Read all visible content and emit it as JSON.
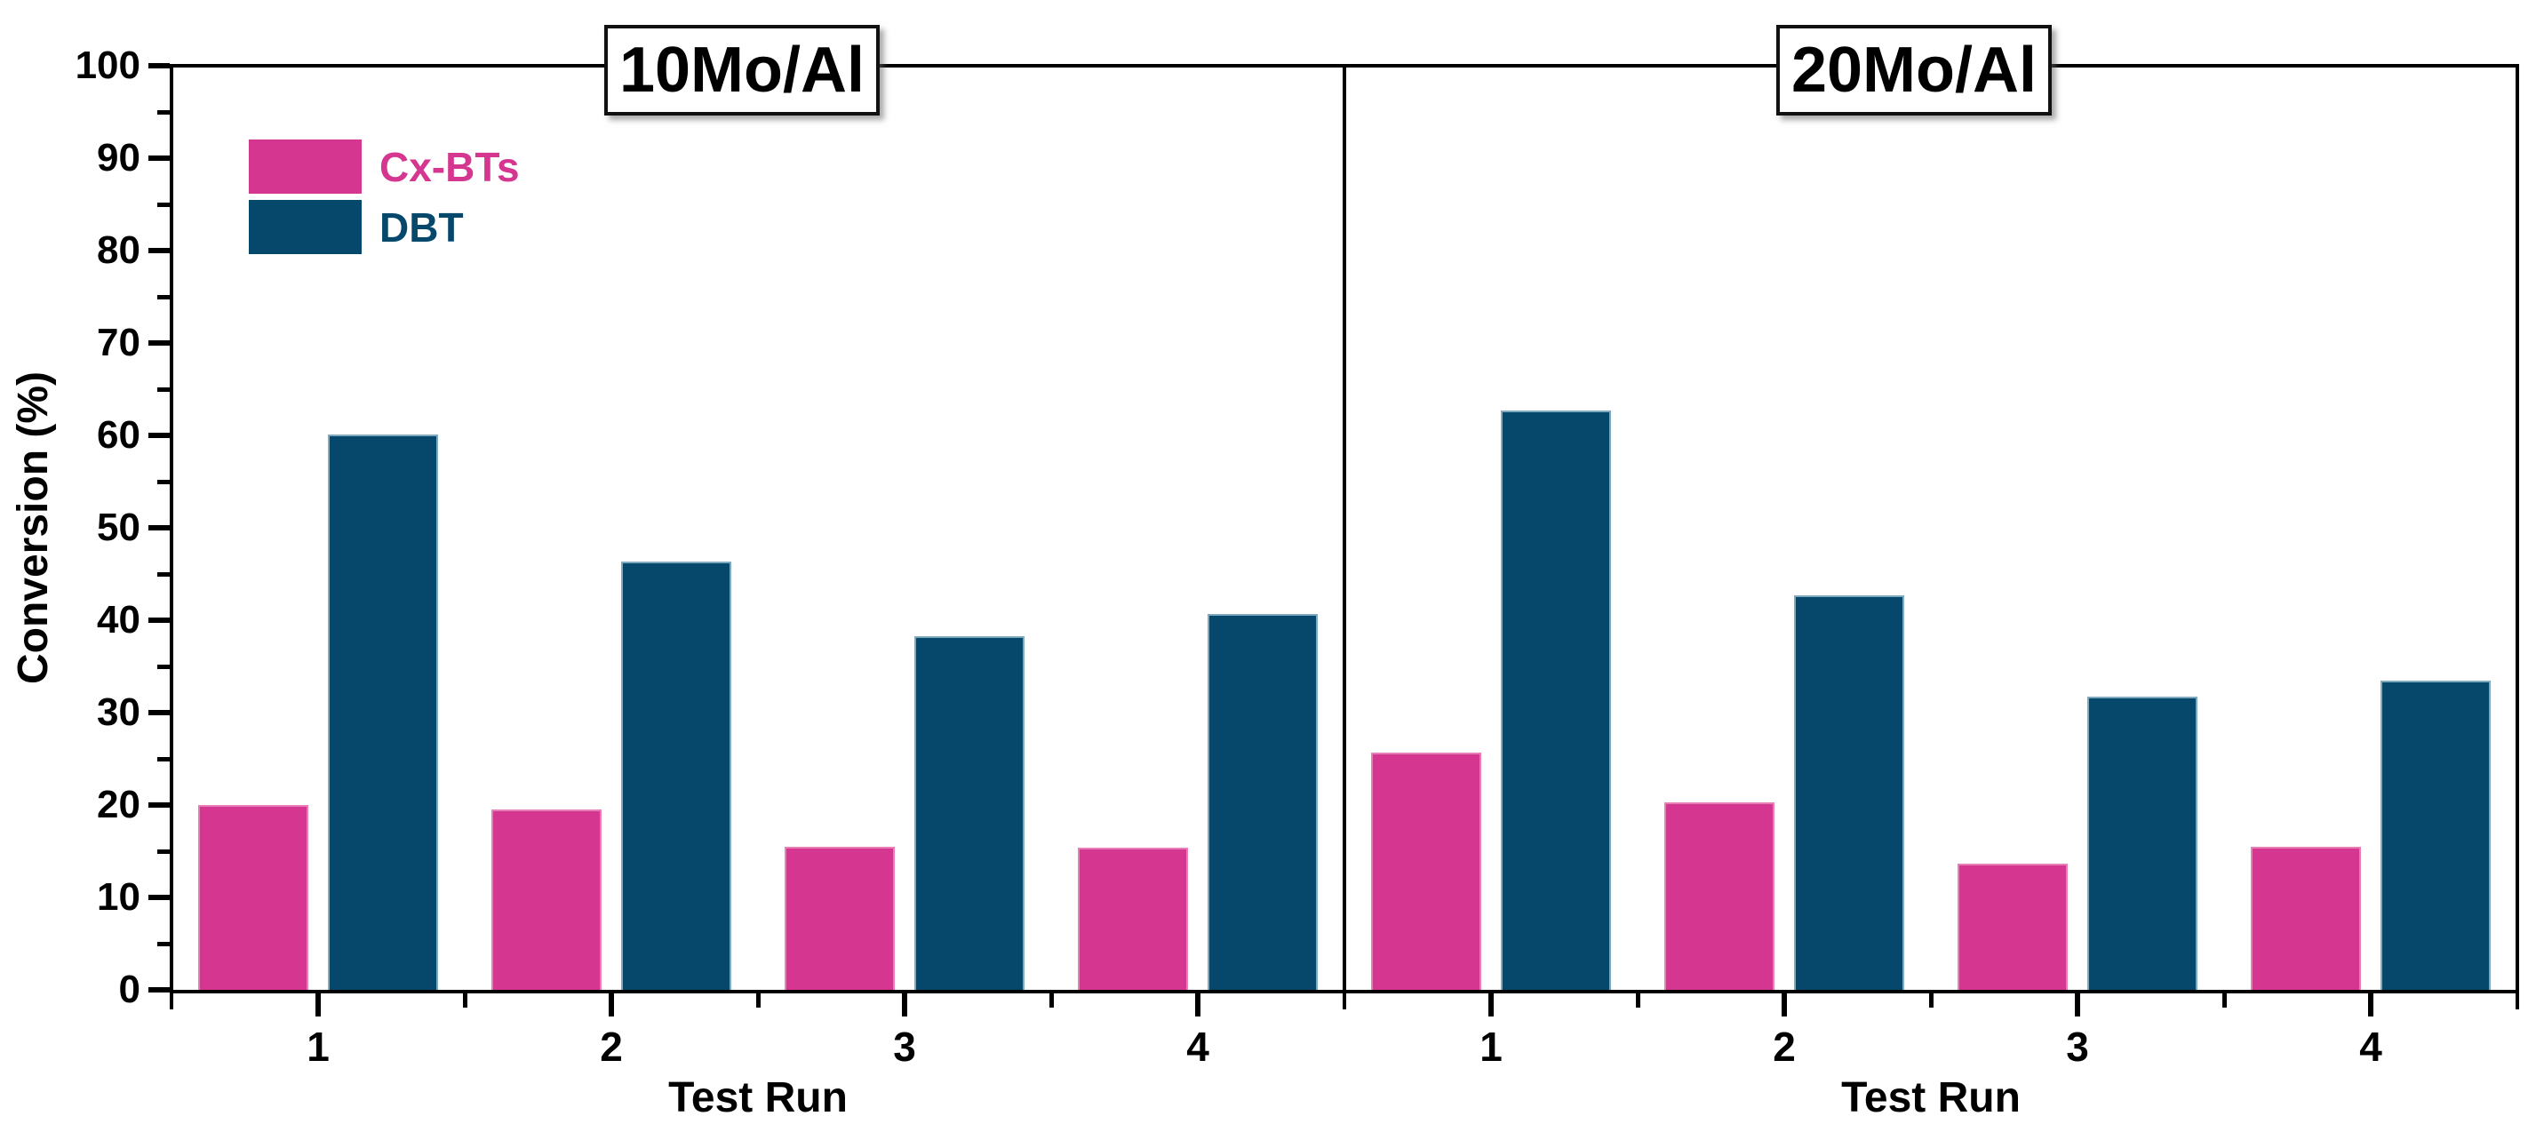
{
  "chart_data": {
    "type": "bar",
    "ylabel": "Conversion (%)",
    "ylim": [
      0,
      100
    ],
    "ytick_step": 10,
    "ytick_minor_step": 5,
    "grid": false,
    "legend_position": "top-left-first-panel",
    "legend": [
      {
        "label": "Cx-BTs",
        "color": "#d43690"
      },
      {
        "label": "DBT",
        "color": "#05486b"
      }
    ],
    "panels": [
      {
        "title": "10Mo/Al",
        "xlabel": "Test Run",
        "categories": [
          "1",
          "2",
          "3",
          "4"
        ],
        "series": [
          {
            "name": "Cx-BTs",
            "color": "#d43690",
            "values": [
              20.0,
              19.5,
              15.5,
              15.4
            ]
          },
          {
            "name": "DBT",
            "color": "#05486b",
            "values": [
              60.1,
              46.3,
              38.3,
              40.7
            ]
          }
        ]
      },
      {
        "title": "20Mo/Al",
        "xlabel": "Test Run",
        "categories": [
          "1",
          "2",
          "3",
          "4"
        ],
        "series": [
          {
            "name": "Cx-BTs",
            "color": "#d43690",
            "values": [
              25.7,
              20.3,
              13.7,
              15.5
            ]
          },
          {
            "name": "DBT",
            "color": "#05486b",
            "values": [
              62.7,
              42.7,
              31.7,
              33.5
            ]
          }
        ]
      }
    ]
  }
}
